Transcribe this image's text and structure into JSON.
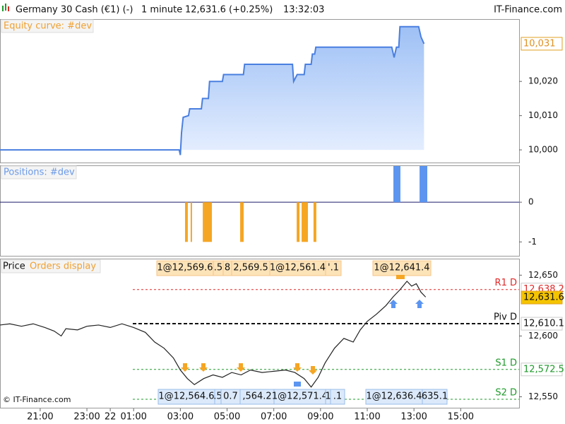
{
  "header": {
    "instrument": "Germany 30 Cash (€1) (-)",
    "timeframe": "1 minute",
    "last": "12,631.6 (+0.25%)",
    "time": "13:32:03",
    "brand": "IT-Finance.com"
  },
  "copyright": "© IT-Finance.com",
  "chart_data": [
    {
      "type": "line",
      "title": "Equity curve: #dev",
      "color": "#4a7fe0",
      "x": [
        -1.72,
        5.95,
        6.0,
        6.05,
        6.12,
        6.35,
        6.4,
        6.9,
        6.95,
        7.2,
        7.25,
        7.8,
        7.85,
        8.7,
        8.75,
        10.8,
        10.85,
        11.0,
        11.3,
        11.35,
        11.6,
        11.65,
        11.75,
        11.8,
        15.05,
        15.15,
        15.25,
        15.35,
        15.4,
        16.2,
        16.3,
        16.43
      ],
      "values": [
        10000,
        10000,
        9998.5,
        10005,
        10009.5,
        10010,
        10012,
        10012,
        10015,
        10015,
        10020,
        10020,
        10022,
        10022,
        10025,
        10025,
        10020,
        10022,
        10022,
        10025,
        10025,
        10028,
        10028,
        10030,
        10030,
        10027,
        10030,
        10030,
        10036,
        10036,
        10033,
        10031
      ],
      "ylim": [
        9996.3,
        10038
      ],
      "yticks": [
        {
          "value": 10000,
          "label": "10,000"
        },
        {
          "value": 10010,
          "label": "10,010"
        },
        {
          "value": 10020,
          "label": "10,020"
        }
      ],
      "last_label": {
        "value": 10031,
        "label": "10,031"
      }
    },
    {
      "type": "bar",
      "title": "Positions: #dev",
      "bars": [
        {
          "start": 6.2,
          "end": 6.32,
          "value": -1,
          "color": "#f5a623"
        },
        {
          "start": 6.44,
          "end": 6.5,
          "value": -1,
          "color": "#f5a623"
        },
        {
          "start": 6.96,
          "end": 7.35,
          "value": -1,
          "color": "#f5a623"
        },
        {
          "start": 8.56,
          "end": 8.71,
          "value": -1,
          "color": "#f5a623"
        },
        {
          "start": 10.98,
          "end": 11.1,
          "value": -1,
          "color": "#f5a623"
        },
        {
          "start": 11.19,
          "end": 11.46,
          "value": -1,
          "color": "#f5a623"
        },
        {
          "start": 11.7,
          "end": 11.82,
          "value": -1,
          "color": "#f5a623"
        },
        {
          "start": 15.12,
          "end": 15.42,
          "value": 1,
          "color": "#5b95f0"
        },
        {
          "start": 16.24,
          "end": 16.57,
          "value": 1,
          "color": "#5b95f0"
        }
      ],
      "ylim": [
        -1.35,
        0.91
      ],
      "yticks": [
        0,
        -1
      ]
    },
    {
      "type": "line",
      "title": "Price",
      "subtitle": "Orders display",
      "color": "#222222",
      "x": [
        -1.72,
        -1.3,
        -0.8,
        -0.3,
        0.2,
        0.6,
        0.9,
        1.1,
        1.6,
        2.0,
        2.5,
        3.0,
        3.5,
        4.0,
        4.5,
        4.9,
        5.3,
        5.7,
        6.0,
        6.3,
        6.6,
        7.0,
        7.4,
        7.8,
        8.2,
        8.6,
        9.0,
        9.5,
        10.0,
        10.5,
        10.9,
        11.3,
        11.6,
        11.9,
        12.2,
        12.6,
        13.0,
        13.4,
        13.7,
        14.0,
        14.4,
        14.8,
        15.1,
        15.4,
        15.7,
        15.9,
        16.1,
        16.3,
        16.5
      ],
      "values": [
        12609,
        12610,
        12608,
        12610,
        12607,
        12604,
        12600,
        12606,
        12605,
        12608,
        12609,
        12607,
        12610,
        12607,
        12603,
        12595,
        12590,
        12582,
        12572,
        12565,
        12560,
        12565,
        12568,
        12566,
        12570,
        12568,
        12572,
        12570,
        12571,
        12572,
        12570,
        12565,
        12558,
        12566,
        12578,
        12590,
        12598,
        12595,
        12605,
        12612,
        12618,
        12625,
        12632,
        12638,
        12645,
        12641,
        12643,
        12636,
        12632
      ],
      "ylim": [
        12541,
        12663
      ],
      "yticks": [
        {
          "value": 12550,
          "label": "12,550"
        },
        {
          "value": 12600,
          "label": "12,600"
        },
        {
          "value": 12650,
          "label": "12,650"
        }
      ],
      "xlim": [
        -1.72,
        20.5
      ],
      "xticks": [
        {
          "value": 0,
          "label": "21:00"
        },
        {
          "value": 2,
          "label": "23:00"
        },
        {
          "value": 3,
          "label": "22"
        },
        {
          "value": 4,
          "label": "01:00"
        },
        {
          "value": 6,
          "label": "03:00"
        },
        {
          "value": 8,
          "label": "05:00"
        },
        {
          "value": 10,
          "label": "07:00"
        },
        {
          "value": 12,
          "label": "09:00"
        },
        {
          "value": 14,
          "label": "11:00"
        },
        {
          "value": 16,
          "label": "13:00"
        },
        {
          "value": 18,
          "label": "15:00"
        }
      ],
      "levels": [
        {
          "name": "R1 D",
          "value": 12638.2,
          "label": "12,638.2",
          "color": "#e02828"
        },
        {
          "name": "Piv D",
          "value": 12610.1,
          "label": "12,610.1",
          "color": "#111111"
        },
        {
          "name": "S1 D",
          "value": 12572.5,
          "label": "12,572.5",
          "color": "#1e9a2a"
        },
        {
          "name": "S2 D",
          "value": 12548,
          "color": "#1e9a2a"
        }
      ],
      "last_label": {
        "value": 12631.6,
        "label": "12,631.6"
      },
      "orders_top": [
        "1@12,569.6",
        ".5",
        "8",
        "2,569.5",
        "1@12,561.4",
        "'.1",
        "1@12,641.4"
      ],
      "orders_bottom": [
        "1@12,564.6",
        ".5",
        "0.7",
        ",564.2",
        "1@12,571.4",
        "1",
        ".1",
        "1@12,636.4",
        "635.1"
      ]
    }
  ]
}
